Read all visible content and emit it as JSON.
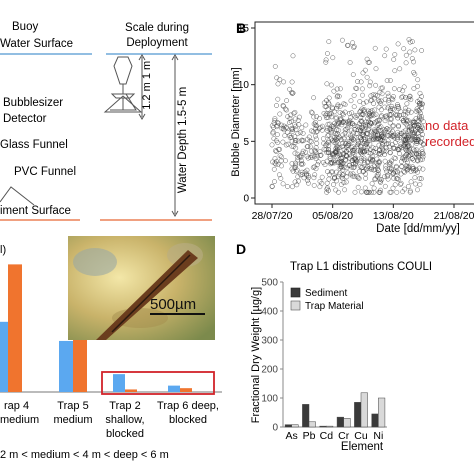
{
  "panel_a": {
    "buoy": "Buoy",
    "water_surface": "Water Surface",
    "scale_line1": "Scale during",
    "scale_line2": "Deployment",
    "bubblesizer_line1": "Bubblesizer",
    "bubblesizer_line2": "Detector",
    "glass_funnel": "Glass Funnel",
    "pvc_funnel": "PVC Funnel",
    "sediment_surface": "iment Surface",
    "dim_1_2": "1.2 m",
    "dim_1": "1 m",
    "water_depth": "Water Depth 1.5-5 m"
  },
  "panel_b": {
    "label": "B",
    "ylabel": "Bubble Diameter [mm]",
    "xlabel": "Date [dd/mm/yy]",
    "annotation_line1": "no data",
    "annotation_line2": "recorded",
    "colors": {
      "marker": "#333333",
      "annotation": "#d2232a"
    },
    "chart_data": {
      "type": "scatter",
      "xlabel": "Date [dd/mm/yy]",
      "ylabel": "Bubble Diameter [mm]",
      "ylim": [
        0,
        15
      ],
      "yticks": [
        "0",
        "5",
        "10",
        "15"
      ],
      "xticks": [
        "28/07/20",
        "05/08/20",
        "13/08/20",
        "21/08/20"
      ],
      "xlim": [
        "28/07/20",
        "21/08/20"
      ],
      "grid": false,
      "segments": [
        {
          "start": "28/07/20",
          "end": "31/07/20",
          "y_min": 1,
          "y_max": 13,
          "y_mean": 5
        },
        {
          "start": "31/07/20",
          "end": "04/08/20",
          "y_min": 1,
          "y_max": 9,
          "y_mean": 4
        },
        {
          "start": "04/08/20",
          "end": "17/08/20",
          "y_min": 0.5,
          "y_max": 14,
          "y_mean": 5
        }
      ],
      "no_data_after": "17/08/20"
    }
  },
  "panel_c": {
    "scale_bar": "500µm",
    "categories": [
      {
        "line1": "rap 4",
        "line2": "medium",
        "line3": ""
      },
      {
        "line1": "Trap 5",
        "line2": "medium",
        "line3": ""
      },
      {
        "line1": "Trap 2",
        "line2": "shallow,",
        "line3": "blocked"
      },
      {
        "line1": "Trap 6 deep,",
        "line2": "blocked",
        "line3": ""
      }
    ],
    "axis_fragment": "l)",
    "depth_legend": "2 m < medium < 4 m < deep < 6 m",
    "colors": {
      "series1": "#5ba8f0",
      "series2": "#f0742e",
      "highlight": "#d2232a"
    },
    "chart_data": {
      "type": "bar",
      "categories": [
        "rap 4 medium",
        "Trap 5 medium",
        "Trap 2 shallow, blocked",
        "Trap 6 deep, blocked"
      ],
      "series": [
        {
          "values": [
            0.55,
            0.4,
            0.14,
            0.05
          ]
        },
        {
          "values": [
            1.0,
            0.42,
            0.02,
            0.03
          ]
        }
      ],
      "ylim": [
        0,
        1.05
      ]
    }
  },
  "panel_d": {
    "label": "D",
    "title": "Trap L1 distributions COULI",
    "ylabel": "Fractional Dry Weight [µg/g]",
    "xlabel": "Element",
    "legend": [
      "Sediment",
      "Trap Material"
    ],
    "colors": {
      "sediment": "#3a3a3a",
      "trap": "#d9d9d9"
    },
    "chart_data": {
      "type": "bar",
      "categories": [
        "As",
        "Pb",
        "Cd",
        "Cr",
        "Cu",
        "Ni"
      ],
      "series": [
        {
          "name": "Sediment",
          "values": [
            8,
            78,
            3,
            34,
            85,
            45
          ]
        },
        {
          "name": "Trap Material",
          "values": [
            8,
            18,
            3,
            30,
            118,
            100
          ]
        }
      ],
      "ylim": [
        0,
        500
      ],
      "yticks": [
        "0",
        "100",
        "200",
        "300",
        "400",
        "500"
      ],
      "legend_position": "top-left"
    }
  }
}
